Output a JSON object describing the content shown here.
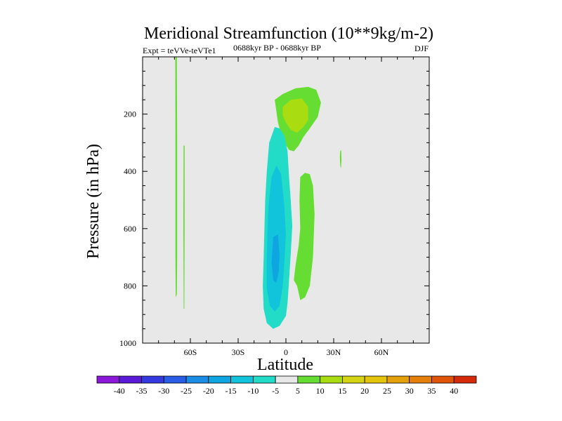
{
  "chart_data": {
    "type": "contour",
    "title": "Meridional Streamfunction (10**9kg/m-2)",
    "left_label": "Expt = teVVe-teVTe1",
    "center_label": "0688kyr BP - 0688kyr BP",
    "right_label": "DJF",
    "xlabel": "Latitude",
    "ylabel": "Pressure (in hPa)",
    "x_range": [
      -90,
      90
    ],
    "y_range": [
      0,
      1000
    ],
    "y_reversed": true,
    "x_ticks": [
      {
        "value": -60,
        "label": "60S"
      },
      {
        "value": -30,
        "label": "30S"
      },
      {
        "value": 0,
        "label": "0"
      },
      {
        "value": 30,
        "label": "30N"
      },
      {
        "value": 60,
        "label": "60N"
      }
    ],
    "y_ticks": [
      {
        "value": 200,
        "label": "200"
      },
      {
        "value": 400,
        "label": "400"
      },
      {
        "value": 600,
        "label": "600"
      },
      {
        "value": 800,
        "label": "800"
      },
      {
        "value": 1000,
        "label": "1000"
      }
    ],
    "background_color": "#e8e8e8",
    "contours": [
      {
        "level": 5,
        "color": "#66dd33",
        "points": [
          [
            -7,
            150
          ],
          [
            -2,
            130
          ],
          [
            6,
            110
          ],
          [
            14,
            105
          ],
          [
            19,
            115
          ],
          [
            22,
            160
          ],
          [
            20,
            210
          ],
          [
            15,
            250
          ],
          [
            11,
            280
          ],
          [
            8,
            310
          ],
          [
            5,
            330
          ],
          [
            2,
            325
          ],
          [
            -1,
            300
          ],
          [
            -3,
            270
          ],
          [
            -5,
            230
          ],
          [
            -6,
            190
          ]
        ]
      },
      {
        "level": 10,
        "color": "#aadd11",
        "points": [
          [
            -2,
            175
          ],
          [
            3,
            150
          ],
          [
            10,
            145
          ],
          [
            14,
            175
          ],
          [
            14,
            220
          ],
          [
            11,
            245
          ],
          [
            7,
            265
          ],
          [
            3,
            255
          ],
          [
            0,
            230
          ],
          [
            -2,
            205
          ]
        ]
      },
      {
        "level": 5,
        "color": "#66dd33",
        "points": [
          [
            -69.5,
            0
          ],
          [
            -68.5,
            0
          ],
          [
            -68.3,
            300
          ],
          [
            -68.3,
            700
          ],
          [
            -68.5,
            830
          ],
          [
            -69.2,
            840
          ],
          [
            -69.4,
            700
          ],
          [
            -69.4,
            300
          ]
        ]
      },
      {
        "level": 5,
        "color": "#66dd33",
        "points": [
          [
            -64.3,
            310
          ],
          [
            -63.6,
            310
          ],
          [
            -63.6,
            600
          ],
          [
            -63.8,
            880
          ],
          [
            -64.2,
            880
          ],
          [
            -64.4,
            600
          ]
        ]
      },
      {
        "level": 5,
        "color": "#66dd33",
        "points": [
          [
            34.1,
            330
          ],
          [
            34.7,
            325
          ],
          [
            34.9,
            360
          ],
          [
            34.6,
            390
          ],
          [
            34.1,
            380
          ],
          [
            33.9,
            350
          ]
        ]
      },
      {
        "level": 5,
        "color": "#66dd33",
        "points": [
          [
            9,
            420
          ],
          [
            12,
            405
          ],
          [
            15,
            410
          ],
          [
            17,
            450
          ],
          [
            18,
            550
          ],
          [
            17,
            700
          ],
          [
            15,
            800
          ],
          [
            12,
            840
          ],
          [
            9,
            850
          ],
          [
            7,
            800
          ],
          [
            5,
            780
          ],
          [
            6,
            730
          ],
          [
            8,
            660
          ],
          [
            9,
            600
          ],
          [
            8.5,
            500
          ]
        ]
      },
      {
        "level": -5,
        "color": "#22dcc8",
        "points": [
          [
            -7,
            245
          ],
          [
            -4,
            250
          ],
          [
            -1,
            275
          ],
          [
            1,
            330
          ],
          [
            2,
            420
          ],
          [
            3,
            500
          ],
          [
            4,
            590
          ],
          [
            3,
            690
          ],
          [
            2,
            780
          ],
          [
            1,
            860
          ],
          [
            0,
            905
          ],
          [
            -4,
            940
          ],
          [
            -8,
            950
          ],
          [
            -12,
            930
          ],
          [
            -14,
            880
          ],
          [
            -14.5,
            800
          ],
          [
            -14,
            700
          ],
          [
            -13.5,
            600
          ],
          [
            -13,
            500
          ],
          [
            -12,
            400
          ],
          [
            -10.5,
            300
          ]
        ]
      },
      {
        "level": -10,
        "color": "#11c4dc",
        "points": [
          [
            -9,
            420
          ],
          [
            -6,
            380
          ],
          [
            -3,
            410
          ],
          [
            -1,
            520
          ],
          [
            0,
            620
          ],
          [
            -1,
            720
          ],
          [
            -2,
            800
          ],
          [
            -4,
            870
          ],
          [
            -7,
            890
          ],
          [
            -10,
            870
          ],
          [
            -12,
            810
          ],
          [
            -12,
            700
          ],
          [
            -11.5,
            600
          ],
          [
            -11,
            520
          ]
        ]
      },
      {
        "level": -15,
        "color": "#0fa5e0",
        "points": [
          [
            -8,
            630
          ],
          [
            -5,
            620
          ],
          [
            -4,
            690
          ],
          [
            -4.5,
            750
          ],
          [
            -6,
            790
          ],
          [
            -8,
            780
          ],
          [
            -9,
            720
          ]
        ]
      }
    ],
    "colorbar": {
      "labels": [
        "-40",
        "-35",
        "-30",
        "-25",
        "-20",
        "-15",
        "-10",
        "-5",
        "5",
        "10",
        "15",
        "20",
        "25",
        "30",
        "35",
        "40"
      ],
      "colors": [
        "#8b18d8",
        "#5a1ad8",
        "#3539e0",
        "#2a5ce6",
        "#1a8ce4",
        "#0fa5e0",
        "#11c4dc",
        "#22dcc8",
        "#e8e8e8",
        "#66dd33",
        "#aadd11",
        "#d4d414",
        "#e4c40c",
        "#e4a00a",
        "#e47f0a",
        "#e0540a",
        "#d42a0a"
      ]
    }
  }
}
